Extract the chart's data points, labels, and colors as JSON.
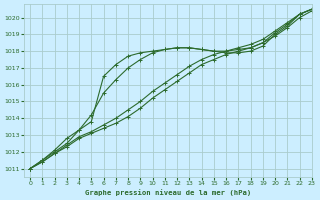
{
  "title": "Graphe pression niveau de la mer (hPa)",
  "background_color": "#cceeff",
  "grid_color": "#aacccc",
  "line_color": "#2d6b2d",
  "xlim": [
    -0.5,
    23
  ],
  "ylim": [
    1010.5,
    1020.8
  ],
  "yticks": [
    1011,
    1012,
    1013,
    1014,
    1015,
    1016,
    1017,
    1018,
    1019,
    1020
  ],
  "xticks": [
    0,
    1,
    2,
    3,
    4,
    5,
    6,
    7,
    8,
    9,
    10,
    11,
    12,
    13,
    14,
    15,
    16,
    17,
    18,
    19,
    20,
    21,
    22,
    23
  ],
  "series": [
    {
      "style": "-",
      "x": [
        0,
        1,
        2,
        3,
        4,
        5,
        6,
        7,
        8,
        9,
        10,
        11,
        12,
        13,
        14,
        15,
        16,
        17,
        18,
        19,
        20,
        21,
        22,
        23
      ],
      "y": [
        1011.0,
        1011.4,
        1011.9,
        1012.3,
        1012.8,
        1013.1,
        1013.4,
        1013.7,
        1014.1,
        1014.6,
        1015.2,
        1015.7,
        1016.2,
        1016.7,
        1017.2,
        1017.5,
        1017.8,
        1018.0,
        1018.2,
        1018.5,
        1018.9,
        1019.4,
        1020.0,
        1020.4
      ]
    },
    {
      "style": "-",
      "x": [
        0,
        1,
        2,
        3,
        4,
        5,
        6,
        7,
        8,
        9,
        10,
        11,
        12,
        13,
        14,
        15,
        16,
        17,
        18,
        19,
        20,
        21,
        22,
        23
      ],
      "y": [
        1011.0,
        1011.4,
        1011.9,
        1012.4,
        1012.9,
        1013.2,
        1013.6,
        1014.0,
        1014.5,
        1015.0,
        1015.6,
        1016.1,
        1016.6,
        1017.1,
        1017.5,
        1017.8,
        1018.0,
        1018.2,
        1018.4,
        1018.7,
        1019.2,
        1019.7,
        1020.2,
        1020.5
      ]
    },
    {
      "style": "-",
      "x": [
        0,
        1,
        2,
        3,
        4,
        5,
        6,
        7,
        8,
        9,
        10,
        11,
        12,
        13,
        14,
        15,
        16,
        17,
        18,
        19,
        20,
        21,
        22,
        23
      ],
      "y": [
        1011.0,
        1011.5,
        1012.0,
        1012.5,
        1013.3,
        1014.2,
        1015.5,
        1016.3,
        1017.0,
        1017.5,
        1017.9,
        1018.1,
        1018.2,
        1018.2,
        1018.1,
        1018.0,
        1018.0,
        1018.1,
        1018.2,
        1018.5,
        1019.1,
        1019.6,
        1020.2,
        1020.5
      ]
    },
    {
      "style": "-",
      "x": [
        0,
        1,
        2,
        3,
        4,
        5,
        6,
        7,
        8,
        9,
        10,
        11,
        12,
        13,
        14,
        15,
        16,
        17,
        18,
        19,
        20,
        21,
        22,
        23
      ],
      "y": [
        1011.0,
        1011.5,
        1012.1,
        1012.8,
        1013.3,
        1013.8,
        1016.5,
        1017.2,
        1017.7,
        1017.9,
        1018.0,
        1018.1,
        1018.2,
        1018.2,
        1018.1,
        1018.0,
        1017.9,
        1017.9,
        1018.0,
        1018.3,
        1019.0,
        1019.5,
        1020.2,
        1020.5
      ]
    }
  ]
}
